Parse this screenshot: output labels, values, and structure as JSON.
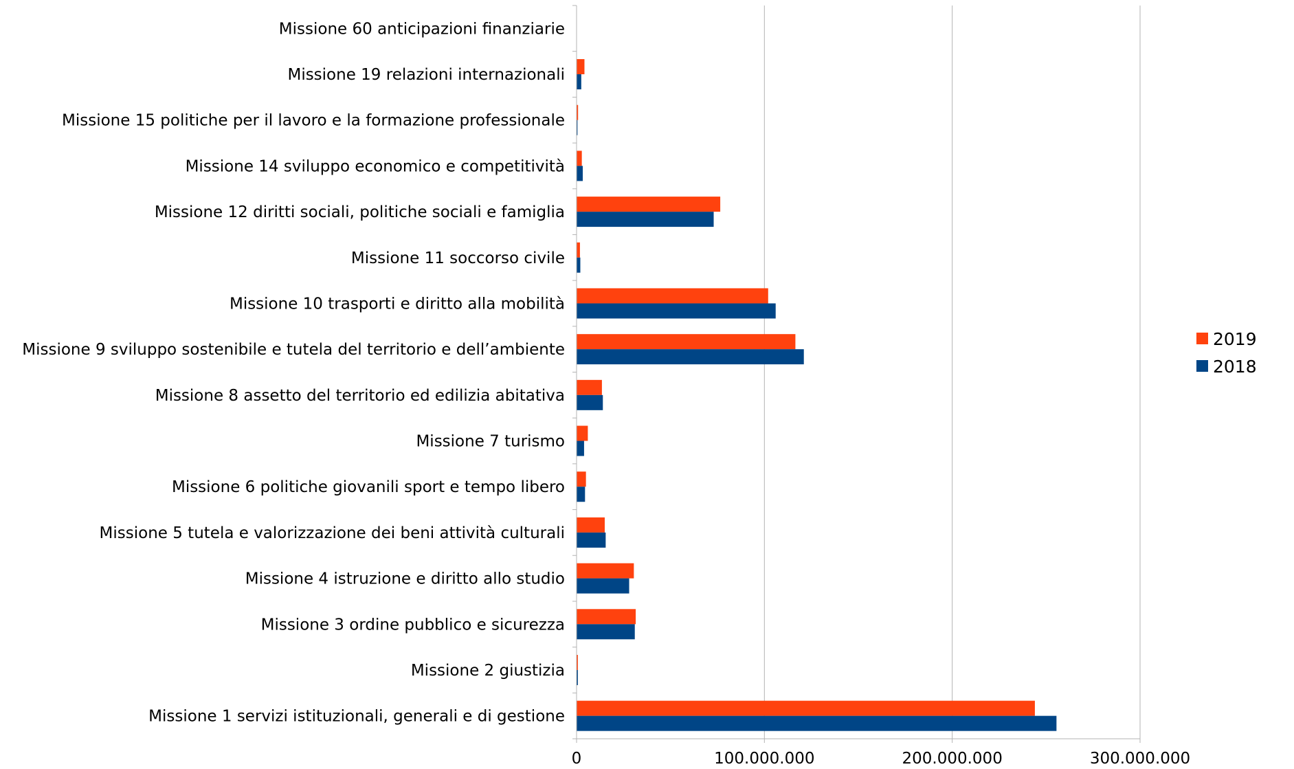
{
  "chart_data": {
    "type": "bar",
    "orientation": "horizontal",
    "title": "",
    "xlabel": "",
    "ylabel": "",
    "xlim": [
      0,
      300000000
    ],
    "x_ticks": [
      0,
      100000000,
      200000000,
      300000000
    ],
    "x_tick_labels": [
      "0",
      "100.000.000",
      "200.000.000",
      "300.000.000"
    ],
    "grid": "vertical",
    "legend_position": "right",
    "categories": [
      "Missione 1 servizi istituzionali, generali e di gestione",
      "Missione 2 giustizia",
      "Missione 3 ordine pubblico e sicurezza",
      "Missione 4 istruzione e diritto allo studio",
      "Missione 5 tutela e valorizzazione dei beni attività culturali",
      "Missione 6 politiche giovanili sport e tempo libero",
      "Missione 7 turismo",
      "Missione 8 assetto del territorio ed edilizia abitativa",
      "Missione 9 sviluppo sostenibile e tutela del territorio e dell’ambiente",
      "Missione 10 trasporti e diritto alla mobilità",
      "Missione 11 soccorso civile",
      "Missione 12 diritti sociali, politiche sociali e famiglia",
      "Missione 14 sviluppo economico e competitività",
      "Missione 15 politiche per il lavoro e la formazione professionale",
      "Missione 19 relazioni internazionali",
      "Missione 60 anticipazioni finanziarie"
    ],
    "series": [
      {
        "name": "2019",
        "color": "#ff420e",
        "values": [
          244000000,
          700000,
          31500000,
          30500000,
          15000000,
          5000000,
          6000000,
          13500000,
          116500000,
          102000000,
          1800000,
          76500000,
          2800000,
          800000,
          4200000,
          0
        ]
      },
      {
        "name": "2018",
        "color": "#004586",
        "values": [
          255500000,
          700000,
          31000000,
          28000000,
          15500000,
          4500000,
          4000000,
          14000000,
          121000000,
          106000000,
          2000000,
          73000000,
          3300000,
          500000,
          2500000,
          0
        ]
      }
    ],
    "legend": [
      {
        "name": "2019",
        "color": "#ff420e"
      },
      {
        "name": "2018",
        "color": "#004586"
      }
    ]
  }
}
